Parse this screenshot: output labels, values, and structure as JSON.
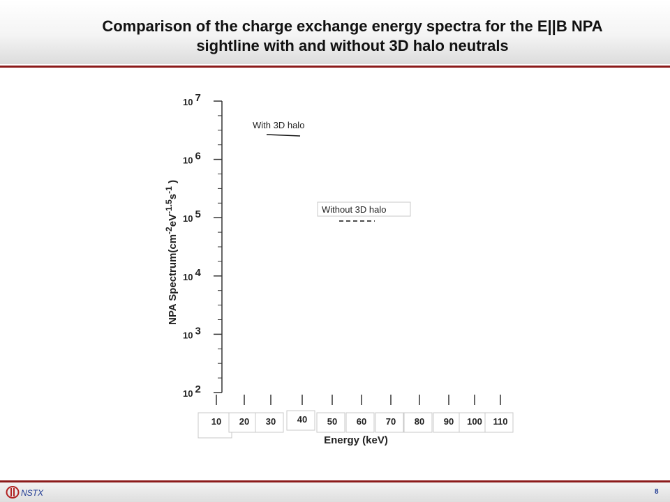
{
  "slide": {
    "title_line1": "Comparison of the charge exchange energy spectra for the E||B NPA",
    "title_line2": "sightline with and without 3D halo neutrals",
    "footer_label": "NSTX",
    "page_number": "8",
    "accent_color": "#8b1a1a",
    "footer_text_color": "#1f3a93"
  },
  "chart_data": {
    "type": "line",
    "title": "",
    "xlabel": "Energy (keV)",
    "ylabel": "NPA Spectrum(cm-2eV-1.5s-1 )",
    "ylabel_parts": [
      "NPA Spectrum(cm",
      "-2",
      "eV",
      "-1.5",
      "s",
      "-1",
      " )"
    ],
    "x_ticks": [
      10,
      20,
      30,
      40,
      50,
      60,
      70,
      80,
      90,
      100,
      110
    ],
    "xlim": [
      10,
      110
    ],
    "y_scale": "log",
    "ylim": [
      100,
      10000000
    ],
    "y_ticks": [
      {
        "base": "10",
        "exp": "2"
      },
      {
        "base": "10",
        "exp": "3"
      },
      {
        "base": "10",
        "exp": "4"
      },
      {
        "base": "10",
        "exp": "5"
      },
      {
        "base": "10",
        "exp": "6"
      },
      {
        "base": "10",
        "exp": "7"
      }
    ],
    "legend": [
      {
        "label": "With 3D halo",
        "style": "solid"
      },
      {
        "label": "Without 3D halo",
        "style": "dashed"
      }
    ],
    "series": [
      {
        "name": "With 3D halo",
        "style": "solid",
        "x": [],
        "y": []
      },
      {
        "name": "Without 3D halo",
        "style": "dashed",
        "x": [],
        "y": []
      }
    ],
    "grid": false
  }
}
